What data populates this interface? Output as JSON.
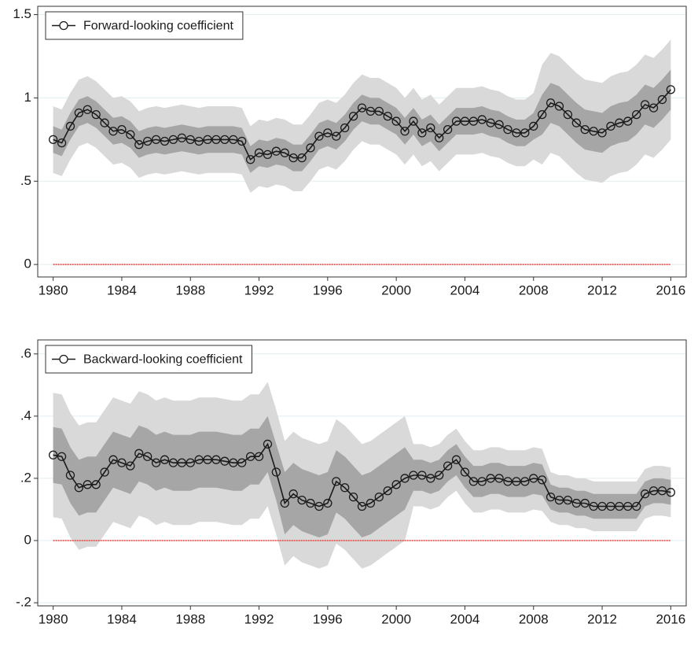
{
  "chart_data": [
    {
      "type": "line",
      "legend": "top-left",
      "grid": true,
      "hline": 0,
      "hline_color": "#e8413c",
      "xlim": [
        1979.1,
        2016.9
      ],
      "ylim": [
        -0.075,
        1.55
      ],
      "xticks": [
        1980,
        1984,
        1988,
        1992,
        1996,
        2000,
        2004,
        2008,
        2012,
        2016
      ],
      "yticks": [
        0,
        {
          "value": 0.5,
          "label": ".5"
        },
        1,
        1.5
      ],
      "x": [
        1980,
        1980.5,
        1981,
        1981.5,
        1982,
        1982.5,
        1983,
        1983.5,
        1984,
        1984.5,
        1985,
        1985.5,
        1986,
        1986.5,
        1987,
        1987.5,
        1988,
        1988.5,
        1989,
        1989.5,
        1990,
        1990.5,
        1991,
        1991.5,
        1992,
        1992.5,
        1993,
        1993.5,
        1994,
        1994.5,
        1995,
        1995.5,
        1996,
        1996.5,
        1997,
        1997.5,
        1998,
        1998.5,
        1999,
        1999.5,
        2000,
        2000.5,
        2001,
        2001.5,
        2002,
        2002.5,
        2003,
        2003.5,
        2004,
        2004.5,
        2005,
        2005.5,
        2006,
        2006.5,
        2007,
        2007.5,
        2008,
        2008.5,
        2009,
        2009.5,
        2010,
        2010.5,
        2011,
        2011.5,
        2012,
        2012.5,
        2013,
        2013.5,
        2014,
        2014.5,
        2015,
        2015.5,
        2016
      ],
      "bands": [
        {
          "color": "#d9d9d9",
          "lower": [
            0.55,
            0.53,
            0.63,
            0.71,
            0.73,
            0.7,
            0.65,
            0.6,
            0.61,
            0.58,
            0.52,
            0.54,
            0.55,
            0.54,
            0.55,
            0.56,
            0.55,
            0.54,
            0.55,
            0.55,
            0.55,
            0.55,
            0.54,
            0.43,
            0.47,
            0.46,
            0.48,
            0.47,
            0.44,
            0.44,
            0.5,
            0.57,
            0.59,
            0.57,
            0.62,
            0.69,
            0.74,
            0.72,
            0.72,
            0.69,
            0.66,
            0.6,
            0.66,
            0.59,
            0.62,
            0.56,
            0.61,
            0.66,
            0.66,
            0.66,
            0.67,
            0.65,
            0.64,
            0.61,
            0.59,
            0.59,
            0.63,
            0.6,
            0.67,
            0.65,
            0.6,
            0.55,
            0.51,
            0.5,
            0.49,
            0.53,
            0.55,
            0.56,
            0.6,
            0.66,
            0.64,
            0.69,
            0.75
          ],
          "upper": [
            0.95,
            0.93,
            1.03,
            1.11,
            1.13,
            1.1,
            1.05,
            1.0,
            1.01,
            0.98,
            0.92,
            0.94,
            0.95,
            0.94,
            0.95,
            0.96,
            0.95,
            0.94,
            0.95,
            0.95,
            0.95,
            0.95,
            0.94,
            0.83,
            0.87,
            0.86,
            0.88,
            0.87,
            0.84,
            0.84,
            0.9,
            0.97,
            0.99,
            0.97,
            1.02,
            1.09,
            1.14,
            1.12,
            1.12,
            1.09,
            1.06,
            1.0,
            1.06,
            0.99,
            1.02,
            0.96,
            1.01,
            1.06,
            1.06,
            1.06,
            1.07,
            1.05,
            1.04,
            1.01,
            0.99,
            0.99,
            1.03,
            1.2,
            1.27,
            1.25,
            1.2,
            1.15,
            1.11,
            1.1,
            1.09,
            1.13,
            1.15,
            1.16,
            1.2,
            1.26,
            1.24,
            1.29,
            1.35
          ]
        },
        {
          "color": "#a6a6a6",
          "lower": [
            0.67,
            0.65,
            0.75,
            0.83,
            0.85,
            0.82,
            0.77,
            0.72,
            0.73,
            0.7,
            0.64,
            0.66,
            0.67,
            0.66,
            0.67,
            0.68,
            0.67,
            0.66,
            0.67,
            0.67,
            0.67,
            0.67,
            0.66,
            0.55,
            0.59,
            0.58,
            0.6,
            0.59,
            0.56,
            0.56,
            0.62,
            0.69,
            0.71,
            0.69,
            0.74,
            0.81,
            0.86,
            0.84,
            0.84,
            0.81,
            0.78,
            0.72,
            0.78,
            0.71,
            0.74,
            0.68,
            0.73,
            0.78,
            0.78,
            0.78,
            0.79,
            0.77,
            0.76,
            0.73,
            0.71,
            0.71,
            0.75,
            0.78,
            0.85,
            0.83,
            0.78,
            0.73,
            0.69,
            0.68,
            0.67,
            0.71,
            0.73,
            0.74,
            0.78,
            0.84,
            0.82,
            0.87,
            0.93
          ],
          "upper": [
            0.83,
            0.81,
            0.91,
            0.99,
            1.01,
            0.98,
            0.93,
            0.88,
            0.89,
            0.86,
            0.8,
            0.82,
            0.83,
            0.82,
            0.83,
            0.84,
            0.83,
            0.82,
            0.83,
            0.83,
            0.83,
            0.83,
            0.82,
            0.71,
            0.75,
            0.74,
            0.76,
            0.75,
            0.72,
            0.72,
            0.78,
            0.85,
            0.87,
            0.85,
            0.9,
            0.97,
            1.02,
            1.0,
            1.0,
            0.97,
            0.94,
            0.88,
            0.94,
            0.87,
            0.9,
            0.84,
            0.89,
            0.94,
            0.94,
            0.94,
            0.95,
            0.93,
            0.92,
            0.89,
            0.87,
            0.87,
            0.91,
            1.02,
            1.09,
            1.07,
            1.02,
            0.97,
            0.93,
            0.92,
            0.91,
            0.95,
            0.97,
            0.98,
            1.02,
            1.08,
            1.06,
            1.11,
            1.17
          ]
        }
      ],
      "series": [
        {
          "name": "Forward-looking coefficient",
          "color": "#1a1a1a",
          "values": [
            0.75,
            0.73,
            0.83,
            0.91,
            0.93,
            0.9,
            0.85,
            0.8,
            0.81,
            0.78,
            0.72,
            0.74,
            0.75,
            0.74,
            0.75,
            0.76,
            0.75,
            0.74,
            0.75,
            0.75,
            0.75,
            0.75,
            0.74,
            0.63,
            0.67,
            0.66,
            0.68,
            0.67,
            0.64,
            0.64,
            0.7,
            0.77,
            0.79,
            0.77,
            0.82,
            0.89,
            0.94,
            0.92,
            0.92,
            0.89,
            0.86,
            0.8,
            0.86,
            0.79,
            0.82,
            0.76,
            0.81,
            0.86,
            0.86,
            0.86,
            0.87,
            0.85,
            0.84,
            0.81,
            0.79,
            0.79,
            0.83,
            0.9,
            0.97,
            0.95,
            0.9,
            0.85,
            0.81,
            0.8,
            0.79,
            0.83,
            0.85,
            0.86,
            0.9,
            0.96,
            0.94,
            0.99,
            1.05
          ]
        }
      ]
    },
    {
      "type": "line",
      "legend": "top-left",
      "grid": true,
      "hline": 0,
      "hline_color": "#e8413c",
      "xlim": [
        1979.1,
        2016.9
      ],
      "ylim": [
        -0.21,
        0.645
      ],
      "xticks": [
        1980,
        1984,
        1988,
        1992,
        1996,
        2000,
        2004,
        2008,
        2012,
        2016
      ],
      "yticks": [
        {
          "value": -0.2,
          "label": "-.2"
        },
        0,
        {
          "value": 0.2,
          "label": ".2"
        },
        {
          "value": 0.4,
          "label": ".4"
        },
        {
          "value": 0.6,
          "label": ".6"
        }
      ],
      "x": [
        1980,
        1980.5,
        1981,
        1981.5,
        1982,
        1982.5,
        1983,
        1983.5,
        1984,
        1984.5,
        1985,
        1985.5,
        1986,
        1986.5,
        1987,
        1987.5,
        1988,
        1988.5,
        1989,
        1989.5,
        1990,
        1990.5,
        1991,
        1991.5,
        1992,
        1992.5,
        1993,
        1993.5,
        1994,
        1994.5,
        1995,
        1995.5,
        1996,
        1996.5,
        1997,
        1997.5,
        1998,
        1998.5,
        1999,
        1999.5,
        2000,
        2000.5,
        2001,
        2001.5,
        2002,
        2002.5,
        2003,
        2003.5,
        2004,
        2004.5,
        2005,
        2005.5,
        2006,
        2006.5,
        2007,
        2007.5,
        2008,
        2008.5,
        2009,
        2009.5,
        2010,
        2010.5,
        2011,
        2011.5,
        2012,
        2012.5,
        2013,
        2013.5,
        2014,
        2014.5,
        2015,
        2015.5,
        2016
      ],
      "bands": [
        {
          "color": "#d9d9d9",
          "lower": [
            0.075,
            0.07,
            0.01,
            -0.03,
            -0.02,
            -0.02,
            0.02,
            0.06,
            0.05,
            0.04,
            0.08,
            0.07,
            0.05,
            0.06,
            0.05,
            0.05,
            0.05,
            0.06,
            0.06,
            0.06,
            0.055,
            0.05,
            0.05,
            0.07,
            0.07,
            0.11,
            0.02,
            -0.08,
            -0.05,
            -0.07,
            -0.08,
            -0.09,
            -0.08,
            -0.01,
            -0.03,
            -0.06,
            -0.09,
            -0.08,
            -0.06,
            -0.04,
            -0.02,
            0,
            0.11,
            0.11,
            0.1,
            0.11,
            0.14,
            0.16,
            0.12,
            0.09,
            0.09,
            0.1,
            0.1,
            0.09,
            0.09,
            0.09,
            0.1,
            0.095,
            0.06,
            0.05,
            0.05,
            0.04,
            0.04,
            0.03,
            0.03,
            0.03,
            0.03,
            0.03,
            0.03,
            0.07,
            0.08,
            0.08,
            0.075
          ],
          "upper": [
            0.475,
            0.47,
            0.41,
            0.37,
            0.38,
            0.38,
            0.42,
            0.46,
            0.45,
            0.44,
            0.48,
            0.47,
            0.45,
            0.46,
            0.45,
            0.45,
            0.45,
            0.46,
            0.46,
            0.46,
            0.455,
            0.45,
            0.45,
            0.47,
            0.47,
            0.51,
            0.42,
            0.32,
            0.35,
            0.33,
            0.32,
            0.31,
            0.32,
            0.39,
            0.37,
            0.34,
            0.31,
            0.32,
            0.34,
            0.36,
            0.38,
            0.4,
            0.31,
            0.31,
            0.3,
            0.31,
            0.34,
            0.36,
            0.32,
            0.29,
            0.29,
            0.3,
            0.3,
            0.29,
            0.29,
            0.29,
            0.3,
            0.295,
            0.22,
            0.21,
            0.21,
            0.2,
            0.2,
            0.19,
            0.19,
            0.19,
            0.19,
            0.19,
            0.19,
            0.23,
            0.24,
            0.24,
            0.235
          ]
        },
        {
          "color": "#a6a6a6",
          "lower": [
            0.185,
            0.18,
            0.12,
            0.08,
            0.09,
            0.09,
            0.13,
            0.17,
            0.16,
            0.15,
            0.19,
            0.18,
            0.16,
            0.17,
            0.16,
            0.16,
            0.16,
            0.17,
            0.17,
            0.17,
            0.165,
            0.16,
            0.16,
            0.18,
            0.18,
            0.22,
            0.13,
            0.02,
            0.05,
            0.03,
            0.02,
            0.01,
            0.02,
            0.09,
            0.07,
            0.04,
            0.01,
            0.02,
            0.04,
            0.06,
            0.08,
            0.1,
            0.16,
            0.16,
            0.15,
            0.16,
            0.19,
            0.21,
            0.17,
            0.14,
            0.14,
            0.15,
            0.15,
            0.14,
            0.14,
            0.14,
            0.15,
            0.145,
            0.1,
            0.09,
            0.09,
            0.08,
            0.08,
            0.07,
            0.07,
            0.07,
            0.07,
            0.07,
            0.07,
            0.11,
            0.12,
            0.12,
            0.115
          ],
          "upper": [
            0.365,
            0.36,
            0.3,
            0.26,
            0.27,
            0.27,
            0.31,
            0.35,
            0.34,
            0.33,
            0.37,
            0.36,
            0.34,
            0.35,
            0.34,
            0.34,
            0.34,
            0.35,
            0.35,
            0.35,
            0.345,
            0.34,
            0.34,
            0.36,
            0.36,
            0.4,
            0.31,
            0.22,
            0.25,
            0.23,
            0.22,
            0.21,
            0.22,
            0.29,
            0.27,
            0.24,
            0.21,
            0.22,
            0.24,
            0.26,
            0.28,
            0.3,
            0.26,
            0.26,
            0.25,
            0.26,
            0.29,
            0.31,
            0.27,
            0.24,
            0.24,
            0.25,
            0.25,
            0.24,
            0.24,
            0.24,
            0.25,
            0.245,
            0.18,
            0.17,
            0.17,
            0.16,
            0.16,
            0.15,
            0.15,
            0.15,
            0.15,
            0.15,
            0.15,
            0.19,
            0.2,
            0.2,
            0.195
          ]
        }
      ],
      "series": [
        {
          "name": "Backward-looking coefficient",
          "color": "#1a1a1a",
          "values": [
            0.275,
            0.27,
            0.21,
            0.17,
            0.18,
            0.18,
            0.22,
            0.26,
            0.25,
            0.24,
            0.28,
            0.27,
            0.25,
            0.26,
            0.25,
            0.25,
            0.25,
            0.26,
            0.26,
            0.26,
            0.255,
            0.25,
            0.25,
            0.27,
            0.27,
            0.31,
            0.22,
            0.12,
            0.15,
            0.13,
            0.12,
            0.11,
            0.12,
            0.19,
            0.17,
            0.14,
            0.11,
            0.12,
            0.14,
            0.16,
            0.18,
            0.2,
            0.21,
            0.21,
            0.2,
            0.21,
            0.24,
            0.26,
            0.22,
            0.19,
            0.19,
            0.2,
            0.2,
            0.19,
            0.19,
            0.19,
            0.2,
            0.195,
            0.14,
            0.13,
            0.13,
            0.12,
            0.12,
            0.11,
            0.11,
            0.11,
            0.11,
            0.11,
            0.11,
            0.15,
            0.16,
            0.16,
            0.155
          ]
        }
      ]
    }
  ]
}
